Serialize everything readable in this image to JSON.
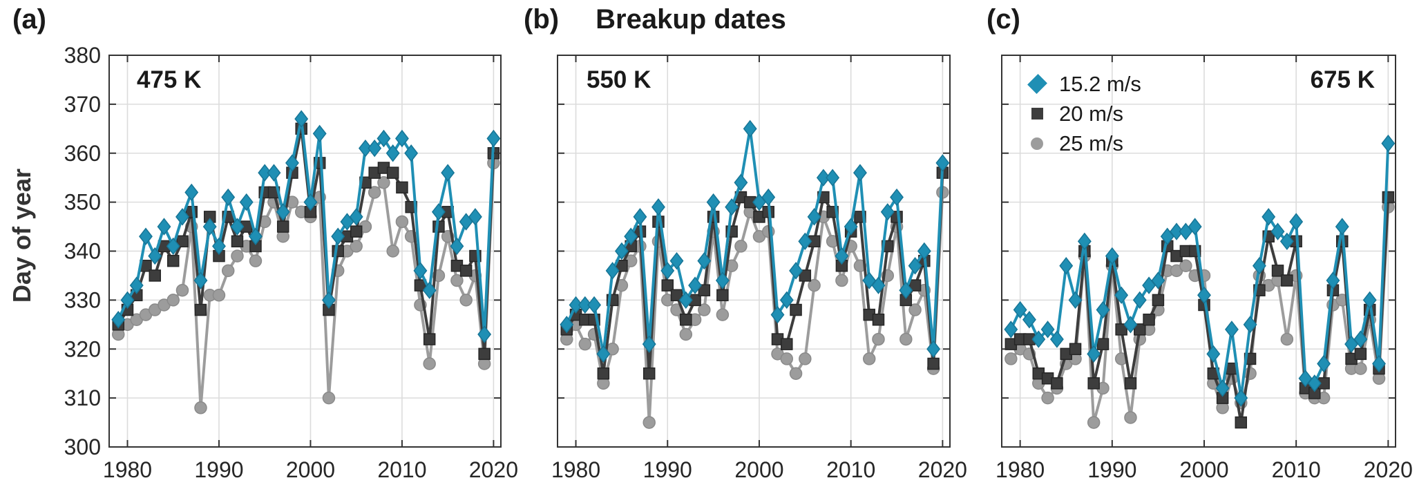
{
  "page": {
    "title": "Breakup dates",
    "ylabel": "Day of year",
    "panel_letters": [
      "(a)",
      "(b)",
      "(c)"
    ]
  },
  "axes": {
    "xlim": [
      1978,
      2020.8
    ],
    "ylim": [
      300,
      380
    ],
    "xticks": [
      1980,
      1990,
      2000,
      2010,
      2020
    ],
    "yticks": [
      300,
      310,
      320,
      330,
      340,
      350,
      360,
      370,
      380
    ],
    "grid": true,
    "grid_color": "#dcdcdc",
    "axis_color": "#333333",
    "tick_label_color": "#262626"
  },
  "legend": {
    "position": "upper-left-of-panel-c",
    "items": [
      {
        "label": "15.2 m/s",
        "marker": "diamond",
        "color": "#1f8fb4"
      },
      {
        "label": "20 m/s",
        "marker": "square",
        "color": "#3d3d3d"
      },
      {
        "label": "25 m/s",
        "marker": "circle",
        "color": "#9c9c9c"
      }
    ]
  },
  "chart_data": [
    {
      "panel": "(a)",
      "label": "475 K",
      "type": "line",
      "title": "Breakup dates",
      "xlabel": "",
      "ylabel": "Day of year",
      "ylim": [
        300,
        380
      ],
      "show_y_tick_labels": true,
      "x": [
        1979,
        1980,
        1981,
        1982,
        1983,
        1984,
        1985,
        1986,
        1987,
        1988,
        1989,
        1990,
        1991,
        1992,
        1993,
        1994,
        1995,
        1996,
        1997,
        1998,
        1999,
        2000,
        2001,
        2002,
        2003,
        2004,
        2005,
        2006,
        2007,
        2008,
        2009,
        2010,
        2011,
        2012,
        2013,
        2014,
        2015,
        2016,
        2017,
        2018,
        2019,
        2020
      ],
      "series": [
        {
          "name": "15.2 m/s",
          "marker": "diamond",
          "color": "#1f8fb4",
          "edge": "#177596",
          "values": [
            326,
            330,
            333,
            343,
            339,
            345,
            341,
            347,
            352,
            334,
            345,
            341,
            351,
            345,
            350,
            343,
            356,
            356,
            348,
            358,
            367,
            350,
            364,
            330,
            343,
            346,
            347,
            361,
            361,
            363,
            360,
            363,
            360,
            336,
            332,
            348,
            356,
            341,
            346,
            347,
            323,
            363
          ]
        },
        {
          "name": "20 m/s",
          "marker": "square",
          "color": "#3d3d3d",
          "edge": "#262626",
          "values": [
            325,
            328,
            331,
            337,
            335,
            341,
            338,
            342,
            348,
            328,
            347,
            339,
            347,
            342,
            345,
            341,
            352,
            352,
            345,
            356,
            365,
            348,
            358,
            328,
            340,
            343,
            344,
            354,
            356,
            357,
            356,
            353,
            349,
            333,
            322,
            345,
            348,
            337,
            336,
            339,
            319,
            360
          ]
        },
        {
          "name": "25 m/s",
          "marker": "circle",
          "color": "#9c9c9c",
          "edge": "#8a8a8a",
          "values": [
            323,
            325,
            326,
            327,
            328,
            329,
            330,
            332,
            345,
            308,
            331,
            331,
            336,
            339,
            341,
            338,
            346,
            350,
            343,
            350,
            348,
            347,
            351,
            310,
            336,
            340,
            341,
            345,
            352,
            354,
            340,
            346,
            343,
            329,
            317,
            335,
            343,
            334,
            330,
            335,
            317,
            358
          ]
        }
      ]
    },
    {
      "panel": "(b)",
      "label": "550 K",
      "type": "line",
      "title": "Breakup dates",
      "xlabel": "",
      "ylabel": "Day of year",
      "ylim": [
        300,
        380
      ],
      "show_y_tick_labels": false,
      "x": [
        1979,
        1980,
        1981,
        1982,
        1983,
        1984,
        1985,
        1986,
        1987,
        1988,
        1989,
        1990,
        1991,
        1992,
        1993,
        1994,
        1995,
        1996,
        1997,
        1998,
        1999,
        2000,
        2001,
        2002,
        2003,
        2004,
        2005,
        2006,
        2007,
        2008,
        2009,
        2010,
        2011,
        2012,
        2013,
        2014,
        2015,
        2016,
        2017,
        2018,
        2019,
        2020
      ],
      "series": [
        {
          "name": "15.2 m/s",
          "marker": "diamond",
          "color": "#1f8fb4",
          "edge": "#177596",
          "values": [
            325,
            329,
            329,
            329,
            319,
            336,
            340,
            343,
            347,
            321,
            349,
            336,
            338,
            330,
            333,
            338,
            350,
            334,
            349,
            354,
            365,
            350,
            351,
            327,
            330,
            336,
            342,
            347,
            355,
            355,
            339,
            345,
            356,
            334,
            333,
            348,
            351,
            332,
            337,
            340,
            320,
            358
          ]
        },
        {
          "name": "20 m/s",
          "marker": "square",
          "color": "#3d3d3d",
          "edge": "#262626",
          "values": [
            324,
            327,
            326,
            326,
            315,
            330,
            337,
            341,
            344,
            315,
            346,
            333,
            331,
            326,
            330,
            332,
            347,
            331,
            344,
            351,
            350,
            347,
            348,
            322,
            321,
            328,
            335,
            342,
            351,
            348,
            337,
            344,
            347,
            327,
            326,
            341,
            347,
            330,
            333,
            338,
            317,
            356
          ]
        },
        {
          "name": "25 m/s",
          "marker": "circle",
          "color": "#9c9c9c",
          "edge": "#8a8a8a",
          "values": [
            322,
            325,
            321,
            323,
            313,
            320,
            333,
            338,
            341,
            305,
            342,
            330,
            328,
            323,
            326,
            328,
            344,
            327,
            337,
            341,
            348,
            343,
            344,
            319,
            318,
            315,
            318,
            333,
            347,
            342,
            334,
            341,
            337,
            318,
            322,
            335,
            345,
            322,
            328,
            332,
            316,
            352
          ]
        }
      ]
    },
    {
      "panel": "(c)",
      "label": "675 K",
      "type": "line",
      "title": "Breakup dates",
      "xlabel": "",
      "ylabel": "Day of year",
      "ylim": [
        300,
        380
      ],
      "show_y_tick_labels": false,
      "x": [
        1979,
        1980,
        1981,
        1982,
        1983,
        1984,
        1985,
        1986,
        1987,
        1988,
        1989,
        1990,
        1991,
        1992,
        1993,
        1994,
        1995,
        1996,
        1997,
        1998,
        1999,
        2000,
        2001,
        2002,
        2003,
        2004,
        2005,
        2006,
        2007,
        2008,
        2009,
        2010,
        2011,
        2012,
        2013,
        2014,
        2015,
        2016,
        2017,
        2018,
        2019,
        2020
      ],
      "series": [
        {
          "name": "15.2 m/s",
          "marker": "diamond",
          "color": "#1f8fb4",
          "edge": "#177596",
          "values": [
            324,
            328,
            326,
            322,
            324,
            322,
            337,
            330,
            342,
            319,
            328,
            339,
            331,
            325,
            330,
            333,
            334,
            343,
            344,
            344,
            345,
            331,
            319,
            312,
            324,
            310,
            325,
            337,
            347,
            344,
            342,
            346,
            314,
            313,
            317,
            334,
            345,
            321,
            322,
            330,
            317,
            362
          ]
        },
        {
          "name": "20 m/s",
          "marker": "square",
          "color": "#3d3d3d",
          "edge": "#262626",
          "values": [
            321,
            322,
            322,
            315,
            314,
            313,
            319,
            320,
            340,
            313,
            321,
            338,
            324,
            313,
            324,
            326,
            330,
            341,
            339,
            340,
            340,
            329,
            315,
            310,
            316,
            305,
            318,
            332,
            343,
            336,
            334,
            342,
            312,
            311,
            313,
            332,
            342,
            318,
            319,
            328,
            316,
            351
          ]
        },
        {
          "name": "25 m/s",
          "marker": "circle",
          "color": "#9c9c9c",
          "edge": "#8a8a8a",
          "values": [
            318,
            320,
            319,
            313,
            310,
            312,
            317,
            318,
            339,
            305,
            312,
            337,
            318,
            306,
            322,
            324,
            328,
            336,
            336,
            337,
            335,
            335,
            313,
            308,
            314,
            309,
            315,
            335,
            333,
            334,
            322,
            335,
            311,
            310,
            310,
            329,
            330,
            316,
            316,
            326,
            314,
            349
          ]
        }
      ]
    }
  ]
}
